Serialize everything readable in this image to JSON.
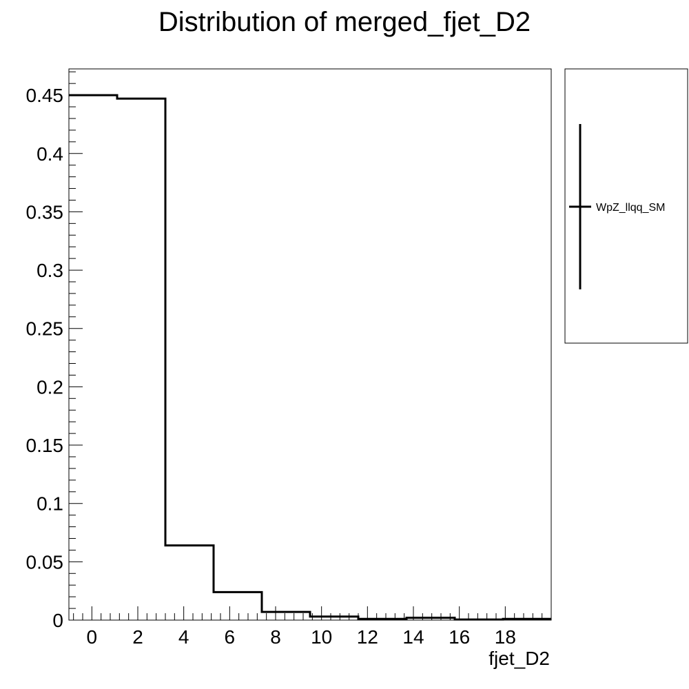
{
  "chart_data": {
    "type": "histogram",
    "title": "Distribution of merged_fjet_D2",
    "xlabel": "fjet_D2",
    "ylabel": "",
    "bin_edges": [
      -1.0,
      1.1,
      3.2,
      5.3,
      7.4,
      9.5,
      11.6,
      13.7,
      15.8,
      17.9,
      20.0
    ],
    "values": [
      0.45,
      0.447,
      0.064,
      0.024,
      0.007,
      0.003,
      0.001,
      0.002,
      0.0005,
      0.001
    ],
    "xlim": [
      -1.0,
      20.0
    ],
    "ylim": [
      0,
      0.4725
    ],
    "x_ticks": [
      0,
      2,
      4,
      6,
      8,
      10,
      12,
      14,
      16,
      18
    ],
    "x_tick_labels": [
      "0",
      "2",
      "4",
      "6",
      "8",
      "10",
      "12",
      "14",
      "16",
      "18"
    ],
    "y_ticks": [
      0,
      0.05,
      0.1,
      0.15,
      0.2,
      0.25,
      0.3,
      0.35,
      0.4,
      0.45
    ],
    "y_tick_labels": [
      "0",
      "0.05",
      "0.1",
      "0.15",
      "0.2",
      "0.25",
      "0.3",
      "0.35",
      "0.4",
      "0.45"
    ],
    "grid": false,
    "legend_position": "right, outside plot",
    "series": [
      {
        "name": "WpZ_llqq_SM",
        "color": "#000000"
      }
    ]
  }
}
